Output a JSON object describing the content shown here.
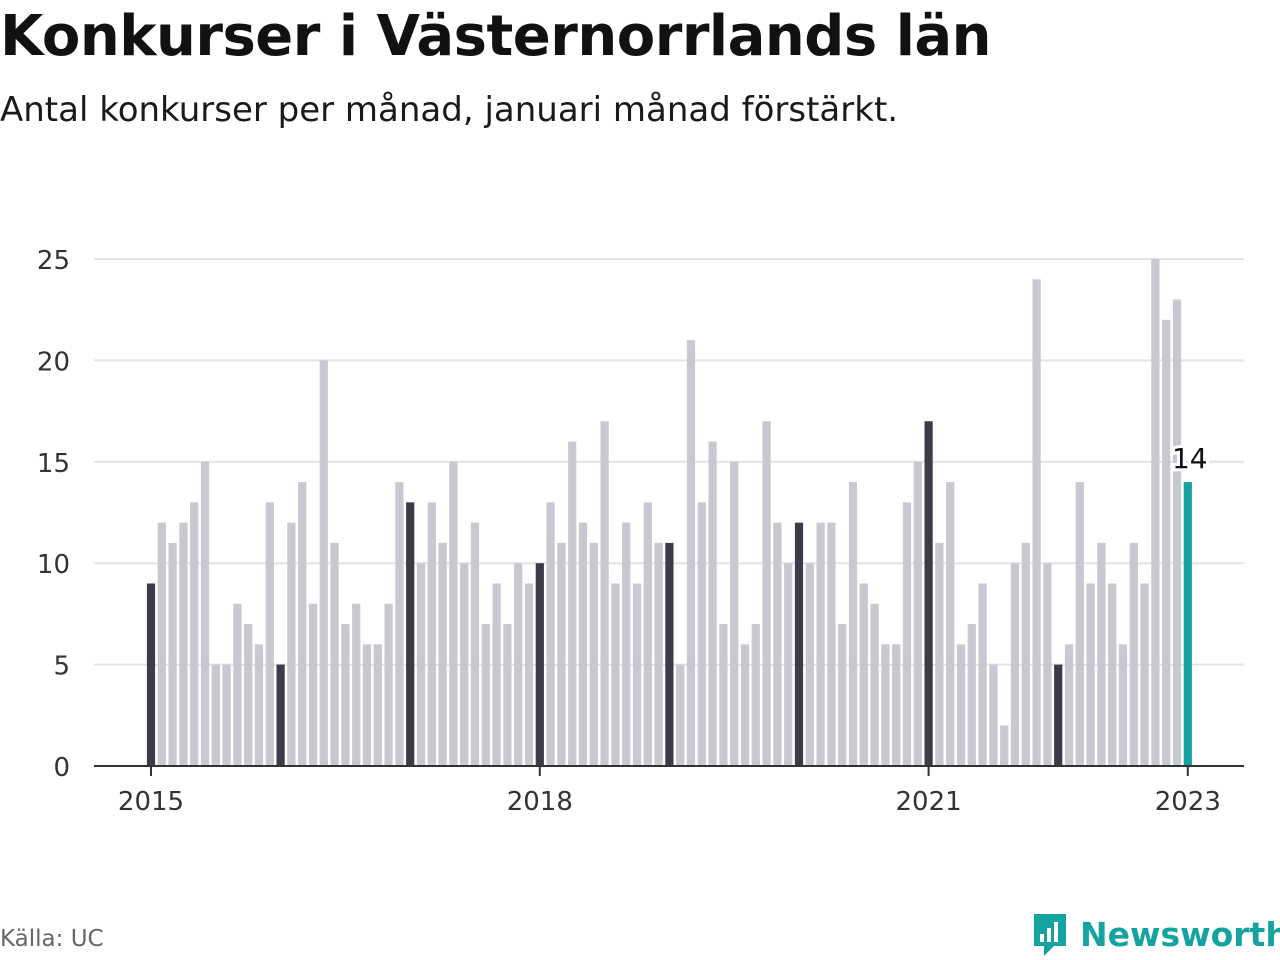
{
  "title": "Konkurser i Västernorrlands län",
  "subtitle": "Antal konkurser per månad, januari månad förstärkt.",
  "source": "Källa: UC",
  "brand": {
    "name": "Newsworthy",
    "icon": "newsworthy-logo-icon",
    "color": "#14a3a0"
  },
  "colors": {
    "january": "#3b3b4a",
    "other": "#c8c8d0",
    "latest": "#14a3a0",
    "grid": "#e3e3e3",
    "axis": "#333333"
  },
  "chart_data": {
    "type": "bar",
    "title": "Konkurser i Västernorrlands län",
    "subtitle": "Antal konkurser per månad, januari månad förstärkt.",
    "start": "2015-01",
    "end": "2023-01",
    "values": [
      9,
      12,
      11,
      12,
      13,
      15,
      5,
      5,
      8,
      7,
      6,
      13,
      5,
      12,
      14,
      8,
      20,
      11,
      7,
      8,
      6,
      6,
      8,
      14,
      13,
      10,
      13,
      11,
      15,
      10,
      12,
      7,
      9,
      7,
      10,
      9,
      10,
      13,
      11,
      16,
      12,
      11,
      17,
      9,
      12,
      9,
      13,
      11,
      11,
      5,
      21,
      13,
      16,
      7,
      15,
      6,
      7,
      17,
      12,
      10,
      12,
      10,
      12,
      12,
      7,
      14,
      9,
      8,
      6,
      6,
      13,
      15,
      17,
      11,
      14,
      6,
      7,
      9,
      5,
      2,
      10,
      11,
      24,
      10,
      5,
      6,
      14,
      9,
      11,
      9,
      6,
      11,
      9,
      25,
      22,
      23,
      14
    ],
    "ylim": [
      0,
      25
    ],
    "yticks": [
      0,
      5,
      10,
      15,
      20,
      25
    ],
    "xticks": [
      "2015",
      "2018",
      "2021",
      "2023"
    ],
    "highlight": "january",
    "last_label": "14",
    "grid": true,
    "legend": "none"
  }
}
